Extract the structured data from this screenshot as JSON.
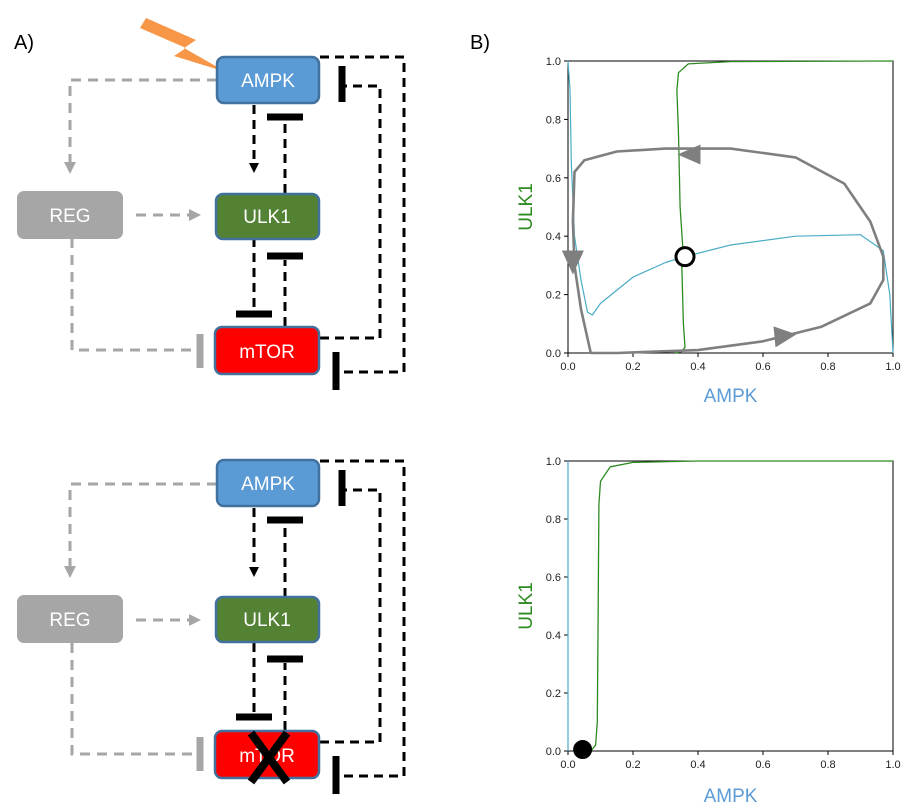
{
  "panels": {
    "a_label": "A)",
    "b_label": "B)"
  },
  "colors": {
    "ampk": "#5b9bd5",
    "ulk1": "#548235",
    "mtor": "#ff0000",
    "reg": "#a6a6a6",
    "ampk_nullcline": "#4bacc6",
    "ulk1_nullcline": "#2e8b22",
    "trajectory": "#7f7f7f"
  },
  "icons": {
    "stimulus": "lightning-bolt-icon",
    "knockout": "cross-icon"
  },
  "network_top": {
    "nodes": {
      "ampk": "AMPK",
      "ulk1": "ULK1",
      "mtor": "mTOR",
      "reg": "REG"
    }
  },
  "network_bottom": {
    "nodes": {
      "ampk": "AMPK",
      "ulk1": "ULK1",
      "mtor": "mTOR",
      "reg": "REG"
    }
  },
  "chart_data": [
    {
      "type": "line",
      "title": "",
      "xlabel": "AMPK",
      "ylabel": "ULK1",
      "xlim": [
        0,
        1
      ],
      "ylim": [
        0,
        1
      ],
      "xticks": [
        "0.0",
        "0.2",
        "0.4",
        "0.6",
        "0.8",
        "1.0"
      ],
      "yticks": [
        "0.0",
        "0.2",
        "0.4",
        "0.6",
        "0.8",
        "1.0"
      ],
      "grid": false,
      "fixed_point": {
        "x": 0.36,
        "y": 0.33,
        "kind": "unstable"
      },
      "series": [
        {
          "role": "ulk1-nullcline",
          "points": [
            [
              0.33,
              0.0
            ],
            [
              0.35,
              0.005
            ],
            [
              0.36,
              0.02
            ],
            [
              0.355,
              0.1
            ],
            [
              0.35,
              0.3
            ],
            [
              0.355,
              0.33
            ],
            [
              0.345,
              0.5
            ],
            [
              0.34,
              0.75
            ],
            [
              0.335,
              0.9
            ],
            [
              0.34,
              0.96
            ],
            [
              0.37,
              0.99
            ],
            [
              0.5,
              0.998
            ],
            [
              1.0,
              1.0
            ]
          ]
        },
        {
          "role": "ampk-nullcline",
          "points": [
            [
              0.0,
              1.0
            ],
            [
              0.006,
              0.9
            ],
            [
              0.01,
              0.65
            ],
            [
              0.02,
              0.4
            ],
            [
              0.04,
              0.25
            ],
            [
              0.06,
              0.14
            ],
            [
              0.075,
              0.13
            ],
            [
              0.1,
              0.17
            ],
            [
              0.2,
              0.26
            ],
            [
              0.3,
              0.31
            ],
            [
              0.36,
              0.33
            ],
            [
              0.5,
              0.37
            ],
            [
              0.7,
              0.4
            ],
            [
              0.9,
              0.405
            ],
            [
              0.97,
              0.35
            ],
            [
              0.99,
              0.2
            ],
            [
              1.0,
              0.0
            ]
          ]
        },
        {
          "role": "limit-cycle",
          "points": [
            [
              0.07,
              0.0
            ],
            [
              0.15,
              0.0
            ],
            [
              0.4,
              0.01
            ],
            [
              0.6,
              0.04
            ],
            [
              0.78,
              0.09
            ],
            [
              0.93,
              0.17
            ],
            [
              0.97,
              0.25
            ],
            [
              0.97,
              0.33
            ],
            [
              0.93,
              0.45
            ],
            [
              0.85,
              0.58
            ],
            [
              0.7,
              0.67
            ],
            [
              0.5,
              0.7
            ],
            [
              0.3,
              0.7
            ],
            [
              0.15,
              0.69
            ],
            [
              0.05,
              0.66
            ],
            [
              0.02,
              0.62
            ],
            [
              0.015,
              0.45
            ],
            [
              0.02,
              0.3
            ],
            [
              0.04,
              0.15
            ],
            [
              0.06,
              0.05
            ],
            [
              0.07,
              0.0
            ]
          ]
        }
      ],
      "arrows": [
        {
          "at": [
            0.38,
            0.68
          ],
          "direction": "left"
        },
        {
          "at": [
            0.015,
            0.32
          ],
          "direction": "down"
        },
        {
          "at": [
            0.66,
            0.05
          ],
          "direction": "right"
        }
      ]
    },
    {
      "type": "line",
      "title": "",
      "xlabel": "AMPK",
      "ylabel": "ULK1",
      "xlim": [
        0,
        1
      ],
      "ylim": [
        0,
        1
      ],
      "xticks": [
        "0.0",
        "0.2",
        "0.4",
        "0.6",
        "0.8",
        "1.0"
      ],
      "yticks": [
        "0.0",
        "0.2",
        "0.4",
        "0.6",
        "0.8",
        "1.0"
      ],
      "grid": false,
      "fixed_point": {
        "x": 0.045,
        "y": 0.005,
        "kind": "stable"
      },
      "series": [
        {
          "role": "ulk1-nullcline",
          "points": [
            [
              0.07,
              0.0
            ],
            [
              0.085,
              0.02
            ],
            [
              0.09,
              0.1
            ],
            [
              0.093,
              0.5
            ],
            [
              0.095,
              0.85
            ],
            [
              0.1,
              0.93
            ],
            [
              0.13,
              0.98
            ],
            [
              0.2,
              0.995
            ],
            [
              0.4,
              1.0
            ],
            [
              1.0,
              1.0
            ]
          ]
        },
        {
          "role": "ampk-nullcline",
          "points": [
            [
              0.0,
              1.0
            ],
            [
              0.0,
              0.6
            ],
            [
              0.0,
              0.3
            ],
            [
              0.0,
              0.0
            ]
          ]
        }
      ]
    }
  ]
}
